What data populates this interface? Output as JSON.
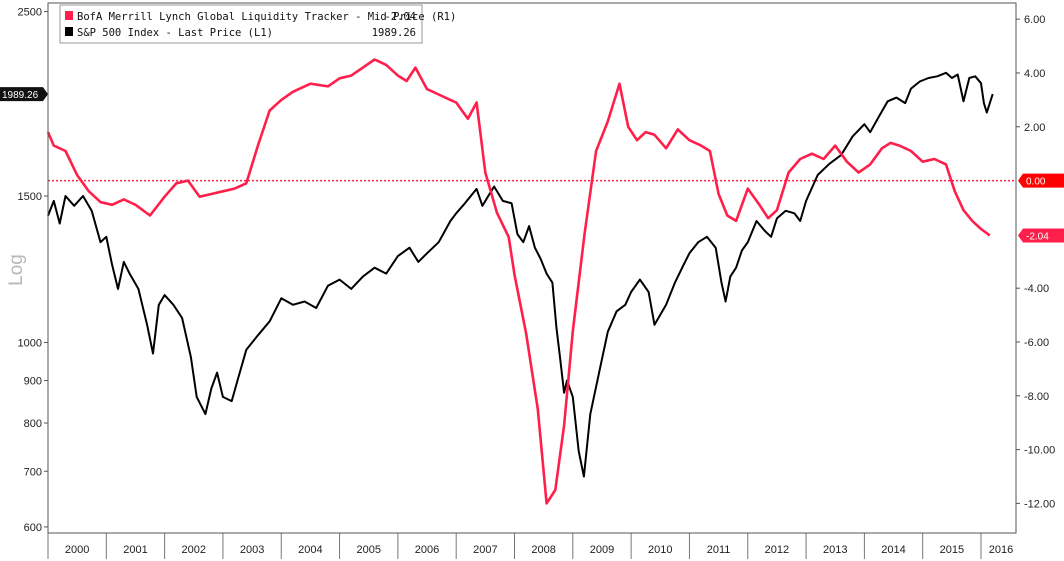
{
  "chart_data": {
    "type": "line",
    "left_axis": {
      "label": "Log",
      "scale": "log",
      "range": [
        590,
        2560
      ],
      "ticks": [
        "2500",
        "1500",
        "1000",
        "900",
        "800",
        "700",
        "600"
      ],
      "tick_values": [
        2500,
        1500,
        1000,
        900,
        800,
        700,
        600
      ]
    },
    "right_axis": {
      "scale": "linear",
      "range": [
        -13.1,
        6.6
      ],
      "ticks": [
        "6.00",
        "4.00",
        "2.00",
        "0.00",
        "-2.04",
        "-4.00",
        "-6.00",
        "-8.00",
        "-10.00",
        "-12.00"
      ],
      "tick_values": [
        6,
        4,
        2,
        0,
        -2.04,
        -4,
        -6,
        -8,
        -10,
        -12
      ]
    },
    "x_axis": {
      "range": [
        2000.0,
        2016.6
      ],
      "ticks": [
        "2000",
        "2001",
        "2002",
        "2003",
        "2004",
        "2005",
        "2006",
        "2007",
        "2008",
        "2009",
        "2010",
        "2011",
        "2012",
        "2013",
        "2014",
        "2015",
        "2016"
      ]
    },
    "legend": {
      "placement": "top-left",
      "entries": [
        {
          "label": "BofA Merrill Lynch Global Liquidity Tracker - Mid Price (R1)",
          "value": "-2.04",
          "color": "#ff1f4b"
        },
        {
          "label": "S&P 500 Index - Last Price (L1)",
          "value": "1989.26",
          "color": "#000000"
        }
      ]
    },
    "last_value_flags": {
      "left": "1989.26",
      "right_zero": "0.00",
      "right_last": "-2.04"
    },
    "zero_line": {
      "value": 0,
      "color": "#ff1f4b",
      "style": "dotted"
    },
    "series": [
      {
        "name": "BofA Merrill Lynch Global Liquidity Tracker - Mid Price (R1)",
        "axis": "right",
        "color": "#ff1f4b",
        "x": [
          2000.0,
          2000.1,
          2000.3,
          2000.5,
          2000.7,
          2000.9,
          2001.1,
          2001.3,
          2001.5,
          2001.75,
          2002.0,
          2002.2,
          2002.4,
          2002.6,
          2002.8,
          2003.0,
          2003.2,
          2003.4,
          2003.6,
          2003.8,
          2004.0,
          2004.2,
          2004.5,
          2004.8,
          2005.0,
          2005.2,
          2005.4,
          2005.6,
          2005.8,
          2006.0,
          2006.15,
          2006.3,
          2006.5,
          2006.7,
          2006.9,
          2007.0,
          2007.1,
          2007.2,
          2007.35,
          2007.5,
          2007.7,
          2007.9,
          2008.0,
          2008.2,
          2008.4,
          2008.55,
          2008.7,
          2008.85,
          2009.0,
          2009.2,
          2009.4,
          2009.6,
          2009.8,
          2009.95,
          2010.1,
          2010.25,
          2010.4,
          2010.6,
          2010.8,
          2011.0,
          2011.2,
          2011.35,
          2011.5,
          2011.65,
          2011.8,
          2012.0,
          2012.2,
          2012.35,
          2012.5,
          2012.7,
          2012.9,
          2013.1,
          2013.3,
          2013.5,
          2013.7,
          2013.9,
          2014.1,
          2014.3,
          2014.45,
          2014.6,
          2014.8,
          2015.0,
          2015.2,
          2015.4,
          2015.55,
          2015.7,
          2015.85,
          2016.0,
          2016.15
        ],
        "values": [
          1.8,
          1.3,
          1.1,
          0.2,
          -0.4,
          -0.8,
          -0.9,
          -0.7,
          -0.9,
          -1.3,
          -0.6,
          -0.1,
          0.0,
          -0.6,
          -0.5,
          -0.4,
          -0.3,
          -0.1,
          1.3,
          2.6,
          3.0,
          3.3,
          3.6,
          3.5,
          3.8,
          3.9,
          4.2,
          4.5,
          4.3,
          3.9,
          3.7,
          4.2,
          3.4,
          3.2,
          3.0,
          2.9,
          2.6,
          2.3,
          2.9,
          0.3,
          -1.2,
          -2.1,
          -3.5,
          -5.7,
          -8.5,
          -12.0,
          -11.5,
          -9.1,
          -5.6,
          -2.0,
          1.1,
          2.2,
          3.6,
          2.0,
          1.5,
          1.8,
          1.7,
          1.2,
          1.9,
          1.5,
          1.3,
          1.1,
          -0.5,
          -1.3,
          -1.5,
          -0.3,
          -0.9,
          -1.4,
          -1.1,
          0.3,
          0.8,
          1.0,
          0.8,
          1.3,
          0.7,
          0.3,
          0.6,
          1.2,
          1.4,
          1.3,
          1.1,
          0.7,
          0.8,
          0.6,
          -0.4,
          -1.1,
          -1.5,
          -1.8,
          -2.04
        ]
      },
      {
        "name": "S&P 500 Index - Last Price (L1)",
        "axis": "left",
        "color": "#000000",
        "x": [
          2000.0,
          2000.1,
          2000.2,
          2000.3,
          2000.45,
          2000.6,
          2000.75,
          2000.9,
          2001.0,
          2001.1,
          2001.2,
          2001.3,
          2001.4,
          2001.55,
          2001.7,
          2001.8,
          2001.9,
          2002.0,
          2002.15,
          2002.3,
          2002.45,
          2002.55,
          2002.7,
          2002.8,
          2002.9,
          2003.0,
          2003.15,
          2003.25,
          2003.4,
          2003.6,
          2003.8,
          2004.0,
          2004.2,
          2004.4,
          2004.6,
          2004.8,
          2005.0,
          2005.2,
          2005.4,
          2005.6,
          2005.8,
          2006.0,
          2006.2,
          2006.35,
          2006.5,
          2006.7,
          2006.9,
          2007.0,
          2007.15,
          2007.25,
          2007.35,
          2007.45,
          2007.55,
          2007.65,
          2007.8,
          2007.95,
          2008.05,
          2008.15,
          2008.25,
          2008.35,
          2008.45,
          2008.55,
          2008.65,
          2008.72,
          2008.78,
          2008.85,
          2008.9,
          2009.0,
          2009.1,
          2009.19,
          2009.3,
          2009.45,
          2009.6,
          2009.75,
          2009.9,
          2010.0,
          2010.15,
          2010.3,
          2010.4,
          2010.5,
          2010.6,
          2010.75,
          2010.9,
          2011.0,
          2011.15,
          2011.3,
          2011.45,
          2011.55,
          2011.62,
          2011.7,
          2011.8,
          2011.9,
          2012.0,
          2012.15,
          2012.3,
          2012.4,
          2012.5,
          2012.65,
          2012.8,
          2012.9,
          2013.0,
          2013.2,
          2013.4,
          2013.6,
          2013.8,
          2014.0,
          2014.1,
          2014.25,
          2014.4,
          2014.55,
          2014.7,
          2014.8,
          2014.95,
          2015.1,
          2015.25,
          2015.4,
          2015.5,
          2015.6,
          2015.7,
          2015.8,
          2015.9,
          2016.0,
          2016.05,
          2016.1,
          2016.2
        ],
        "values": [
          1420,
          1480,
          1390,
          1500,
          1460,
          1500,
          1440,
          1320,
          1340,
          1240,
          1160,
          1250,
          1210,
          1160,
          1050,
          970,
          1110,
          1140,
          1110,
          1070,
          960,
          860,
          820,
          880,
          920,
          860,
          850,
          900,
          980,
          1020,
          1060,
          1130,
          1110,
          1120,
          1100,
          1170,
          1190,
          1160,
          1200,
          1230,
          1210,
          1270,
          1300,
          1250,
          1280,
          1320,
          1400,
          1430,
          1470,
          1500,
          1530,
          1460,
          1500,
          1540,
          1480,
          1470,
          1350,
          1320,
          1380,
          1300,
          1260,
          1210,
          1180,
          1040,
          960,
          870,
          900,
          860,
          740,
          690,
          820,
          920,
          1030,
          1090,
          1110,
          1150,
          1190,
          1150,
          1050,
          1080,
          1110,
          1180,
          1240,
          1280,
          1320,
          1340,
          1300,
          1180,
          1120,
          1200,
          1230,
          1290,
          1320,
          1400,
          1360,
          1340,
          1410,
          1440,
          1430,
          1400,
          1480,
          1590,
          1640,
          1680,
          1770,
          1830,
          1790,
          1870,
          1950,
          1970,
          1940,
          2020,
          2060,
          2080,
          2090,
          2110,
          2080,
          2100,
          1950,
          2080,
          2090,
          2050,
          1940,
          1890,
          1989.26
        ]
      }
    ]
  }
}
